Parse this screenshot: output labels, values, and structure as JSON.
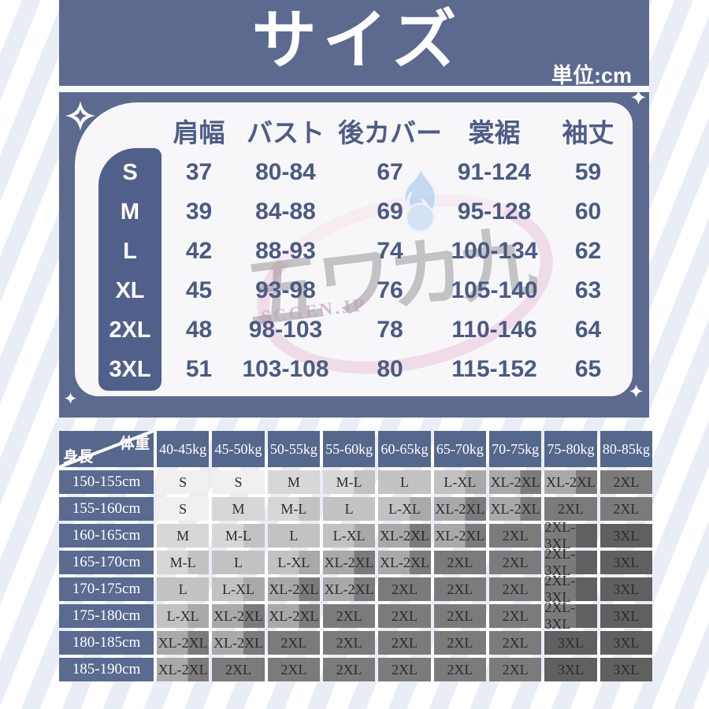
{
  "header": {
    "title": "サイズ",
    "unit_label": "単位:cm"
  },
  "size_table": {
    "columns": [
      "肩幅",
      "バスト",
      "後カバー",
      "裳裾",
      "袖丈"
    ],
    "rows": [
      {
        "size": "S",
        "values": [
          "37",
          "80-84",
          "67",
          "91-124",
          "59"
        ]
      },
      {
        "size": "M",
        "values": [
          "39",
          "84-88",
          "69",
          "95-128",
          "60"
        ]
      },
      {
        "size": "L",
        "values": [
          "42",
          "88-93",
          "74",
          "100-134",
          "62"
        ]
      },
      {
        "size": "XL",
        "values": [
          "45",
          "93-98",
          "76",
          "105-140",
          "63"
        ]
      },
      {
        "size": "2XL",
        "values": [
          "48",
          "98-103",
          "78",
          "110-146",
          "64"
        ]
      },
      {
        "size": "3XL",
        "values": [
          "51",
          "103-108",
          "80",
          "115-152",
          "65"
        ]
      }
    ]
  },
  "watermark": {
    "logo_text": "五ワカ九",
    "site_text": "SCGEN.JP"
  },
  "matrix_table": {
    "corner_top_right": "体重",
    "corner_bottom_left": "身長",
    "weight_columns": [
      "40-45kg",
      "45-50kg",
      "50-55kg",
      "55-60kg",
      "60-65kg",
      "65-70kg",
      "70-75kg",
      "75-80kg",
      "80-85kg"
    ],
    "rows": [
      {
        "height": "150-155cm",
        "sizes": [
          "S",
          "S",
          "M",
          "M-L",
          "L",
          "L-XL",
          "XL-2XL",
          "XL-2XL",
          "2XL"
        ]
      },
      {
        "height": "155-160cm",
        "sizes": [
          "S",
          "M",
          "M-L",
          "L",
          "L-XL",
          "XL-2XL",
          "XL-2XL",
          "2XL",
          "2XL"
        ]
      },
      {
        "height": "160-165cm",
        "sizes": [
          "M",
          "M-L",
          "L",
          "L-XL",
          "XL-2XL",
          "XL-2XL",
          "2XL",
          "2XL-3XL",
          "3XL"
        ]
      },
      {
        "height": "165-170cm",
        "sizes": [
          "M-L",
          "L",
          "L-XL",
          "XL-2XL",
          "XL-2XL",
          "2XL",
          "2XL",
          "2XL-3XL",
          "3XL"
        ]
      },
      {
        "height": "170-175cm",
        "sizes": [
          "L",
          "L-XL",
          "XL-2XL",
          "XL-2XL",
          "2XL",
          "2XL",
          "2XL",
          "2XL-3XL",
          "3XL"
        ]
      },
      {
        "height": "175-180cm",
        "sizes": [
          "L-XL",
          "XL-2XL",
          "XL-2XL",
          "2XL",
          "2XL",
          "2XL",
          "2XL",
          "2XL-3XL",
          "3XL"
        ]
      },
      {
        "height": "180-185cm",
        "sizes": [
          "XL-2XL",
          "XL-2XL",
          "2XL",
          "2XL",
          "2XL",
          "2XL",
          "2XL",
          "3XL",
          "3XL"
        ]
      },
      {
        "height": "185-190cm",
        "sizes": [
          "XL-2XL",
          "2XL",
          "2XL",
          "2XL",
          "2XL",
          "2XL",
          "2XL",
          "3XL",
          "3XL"
        ]
      }
    ]
  },
  "colors": {
    "panel_blue": "#5c6a8f",
    "card_bg": "#f7f7f9",
    "accent_navy": "#4b5a84",
    "size_column_bg": "#51608a",
    "matrix_header_blue": "#56678d",
    "matrix_row_header_blue": "#5a6a90",
    "size_shades": {
      "S": "#f0f0f1",
      "M": "#d7d7d8",
      "L": "#c2c2c3",
      "XL": "#a9a9aa",
      "2XL": "#7b7b7c",
      "3XL": "#606061"
    }
  }
}
